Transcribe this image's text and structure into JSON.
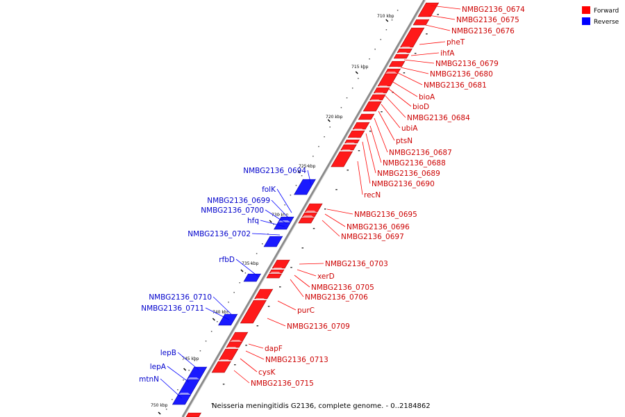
{
  "legend": {
    "forward_label": "Forward",
    "reverse_label": "Reverse",
    "forward_color": "#ff0000",
    "reverse_color": "#0000ff"
  },
  "caption": "Neisseria meningitidis G2136, complete genome. - 0..2184862",
  "colors": {
    "forward_label": "#cc0000",
    "reverse_label": "#0000cc",
    "backbone": "#888888"
  },
  "ticks": [
    {
      "label": "710 kbp"
    },
    {
      "label": "715 kbp"
    },
    {
      "label": "720 kbp"
    },
    {
      "label": "725 kbp"
    },
    {
      "label": "730 kbp"
    },
    {
      "label": "735 kbp"
    },
    {
      "label": "740 kbp"
    },
    {
      "label": "745 kbp"
    },
    {
      "label": "750 kbp"
    }
  ],
  "forward_genes": [
    {
      "name": "NMBG2136_0674"
    },
    {
      "name": "NMBG2136_0675"
    },
    {
      "name": "NMBG2136_0676"
    },
    {
      "name": "pheT"
    },
    {
      "name": "ihfA"
    },
    {
      "name": "NMBG2136_0679"
    },
    {
      "name": "NMBG2136_0680"
    },
    {
      "name": "NMBG2136_0681"
    },
    {
      "name": "bioA"
    },
    {
      "name": "bioD"
    },
    {
      "name": "NMBG2136_0684"
    },
    {
      "name": "ubiA"
    },
    {
      "name": "ptsN"
    },
    {
      "name": "NMBG2136_0687"
    },
    {
      "name": "NMBG2136_0688"
    },
    {
      "name": "NMBG2136_0689"
    },
    {
      "name": "NMBG2136_0690"
    },
    {
      "name": "recN"
    },
    {
      "name": "NMBG2136_0695"
    },
    {
      "name": "NMBG2136_0696"
    },
    {
      "name": "NMBG2136_0697"
    },
    {
      "name": "NMBG2136_0703"
    },
    {
      "name": "xerD"
    },
    {
      "name": "NMBG2136_0705"
    },
    {
      "name": "NMBG2136_0706"
    },
    {
      "name": "purC"
    },
    {
      "name": "NMBG2136_0709"
    },
    {
      "name": "dapF"
    },
    {
      "name": "NMBG2136_0713"
    },
    {
      "name": "cysK"
    },
    {
      "name": "NMBG2136_0715"
    }
  ],
  "reverse_genes": [
    {
      "name": "NMBG2136_0694"
    },
    {
      "name": "folK"
    },
    {
      "name": "NMBG2136_0699"
    },
    {
      "name": "NMBG2136_0700"
    },
    {
      "name": "hfq"
    },
    {
      "name": "NMBG2136_0702"
    },
    {
      "name": "rfbD"
    },
    {
      "name": "NMBG2136_0710"
    },
    {
      "name": "NMBG2136_0711"
    },
    {
      "name": "lepB"
    },
    {
      "name": "lepA"
    },
    {
      "name": "mtnN"
    }
  ]
}
